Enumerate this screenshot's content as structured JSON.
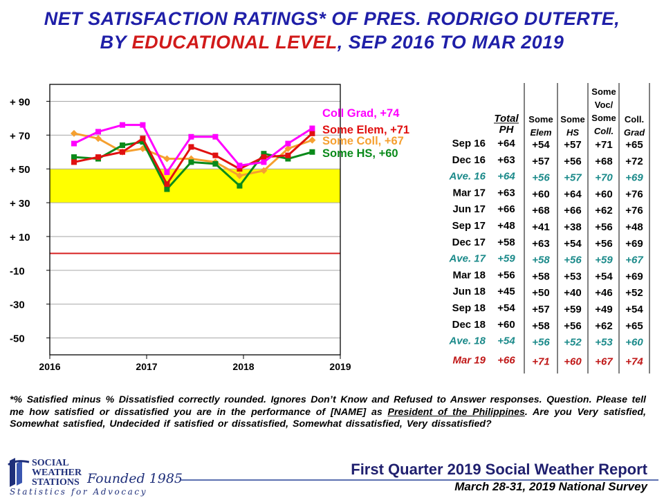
{
  "title": {
    "line1": "NET SATISFACTION RATINGS* OF PRES. RODRIGO DUTERTE,",
    "line2_before": "BY ",
    "line2_highlight": "EDUCATIONAL LEVEL",
    "line2_after": ", SEP 2016 TO MAR 2019"
  },
  "chart_data": {
    "type": "line",
    "ylim": [
      -60,
      100
    ],
    "yticks": [
      90,
      70,
      50,
      30,
      10,
      -10,
      -30,
      -50
    ],
    "ytick_labels": [
      "+ 90",
      "+ 70",
      "+ 50",
      "+ 30",
      "+ 10",
      "-10",
      "-30",
      "-50"
    ],
    "xlim": [
      2016,
      2019
    ],
    "xtick_labels": [
      "2016",
      "2017",
      "2018",
      "2019"
    ],
    "x": [
      2016.25,
      2016.5,
      2016.75,
      2016.96,
      2017.21,
      2017.46,
      2017.71,
      2017.96,
      2018.21,
      2018.46,
      2018.71
    ],
    "band": {
      "from": 30,
      "to": 50,
      "color": "#ffff00"
    },
    "zero_line_color": "#d62020",
    "series": [
      {
        "name": "Coll Grad",
        "label": "Coll Grad, +74",
        "color": "#ff00ff",
        "values": [
          65,
          72,
          76,
          76,
          48,
          69,
          69,
          52,
          54,
          65,
          74
        ]
      },
      {
        "name": "Some Elem",
        "label": "Some Elem, +71",
        "color": "#e01010",
        "values": [
          54,
          57,
          60,
          68,
          41,
          63,
          58,
          50,
          57,
          58,
          71
        ]
      },
      {
        "name": "Some Coll",
        "label": "Some Coll, +67",
        "color": "#f5a030",
        "values": [
          71,
          68,
          60,
          62,
          56,
          56,
          54,
          46,
          49,
          62,
          67
        ]
      },
      {
        "name": "Some HS",
        "label": "Some HS, +60",
        "color": "#0a8a1a",
        "values": [
          57,
          56,
          64,
          66,
          38,
          54,
          53,
          40,
          59,
          56,
          60
        ]
      }
    ]
  },
  "table": {
    "headers": [
      "Total PH",
      "Some Elem",
      "Some HS",
      "Some Voc/ Some Coll.",
      "Coll. Grad"
    ],
    "rows": [
      {
        "label": "Sep 16",
        "type": "normal",
        "values": [
          "+64",
          "+54",
          "+57",
          "+71",
          "+65"
        ]
      },
      {
        "label": "Dec 16",
        "type": "normal",
        "values": [
          "+63",
          "+57",
          "+56",
          "+68",
          "+72"
        ]
      },
      {
        "label": "Ave. 16",
        "type": "ave",
        "values": [
          "+64",
          "+56",
          "+57",
          "+70",
          "+69"
        ]
      },
      {
        "label": "Mar 17",
        "type": "normal",
        "values": [
          "+63",
          "+60",
          "+64",
          "+60",
          "+76"
        ]
      },
      {
        "label": "Jun 17",
        "type": "normal",
        "values": [
          "+66",
          "+68",
          "+66",
          "+62",
          "+76"
        ]
      },
      {
        "label": "Sep 17",
        "type": "normal",
        "values": [
          "+48",
          "+41",
          "+38",
          "+56",
          "+48"
        ]
      },
      {
        "label": "Dec 17",
        "type": "normal",
        "values": [
          "+58",
          "+63",
          "+54",
          "+56",
          "+69"
        ]
      },
      {
        "label": "Ave. 17",
        "type": "ave",
        "values": [
          "+59",
          "+58",
          "+56",
          "+59",
          "+67"
        ]
      },
      {
        "label": "Mar 18",
        "type": "normal",
        "values": [
          "+56",
          "+58",
          "+53",
          "+54",
          "+69"
        ]
      },
      {
        "label": "Jun 18",
        "type": "normal",
        "values": [
          "+45",
          "+50",
          "+40",
          "+46",
          "+52"
        ]
      },
      {
        "label": "Sep 18",
        "type": "normal",
        "values": [
          "+54",
          "+57",
          "+59",
          "+49",
          "+54"
        ]
      },
      {
        "label": "Dec 18",
        "type": "normal",
        "values": [
          "+60",
          "+58",
          "+56",
          "+62",
          "+65"
        ]
      },
      {
        "label": "Ave. 18",
        "type": "ave",
        "values": [
          "+54",
          "+56",
          "+52",
          "+53",
          "+60"
        ]
      },
      {
        "label": "Mar 19",
        "type": "latest",
        "values": [
          "+66",
          "+71",
          "+60",
          "+67",
          "+74"
        ]
      }
    ]
  },
  "footnote": {
    "p1": "*% Satisfied minus % Dissatisfied correctly rounded. Ignores Don’t Know and Refused to Answer responses. Question. Please tell me how satisfied or dissatisfied you are in the performance of [NAME] as ",
    "underlined": "President of the Philippines",
    "p2": ". Are you Very satisfied, Somewhat satisfied, Undecided if satisfied or dissatisfied, Somewhat dissatisfied, Very dissatisfied?"
  },
  "logo": {
    "line1": "SOCIAL",
    "line2": "WEATHER",
    "line3": "STATIONS",
    "founded": "Founded 1985",
    "tagline": "Statistics for Advocacy"
  },
  "report": {
    "title": "First Quarter 2019 Social Weather Report",
    "subtitle": "March 28-31, 2019 National Survey"
  },
  "colors": {
    "title_blue": "#1f1fa8",
    "highlight_red": "#d11a1a",
    "ave_teal": "#1b8a8a",
    "latest_red": "#c01818"
  }
}
